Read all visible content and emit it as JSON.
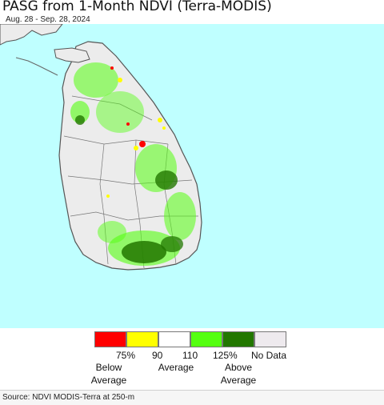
{
  "title": "PASG from 1-Month NDVI (Terra-MODIS)",
  "date_range": "Aug. 28 - Sep. 28, 2024",
  "legend": {
    "categories": [
      {
        "color": "#ff0000",
        "name": "red"
      },
      {
        "color": "#ffff00",
        "name": "yellow"
      },
      {
        "color": "#ffffff",
        "name": "white"
      },
      {
        "color": "#55ff11",
        "name": "light-green"
      },
      {
        "color": "#227700",
        "name": "dark-green"
      },
      {
        "color": "#eeeaee",
        "name": "no-data"
      }
    ],
    "ticks": [
      "75%",
      "90",
      "110",
      "125%",
      "No Data"
    ],
    "group_labels": {
      "below": [
        "Below",
        "Average"
      ],
      "average": "Average",
      "above": [
        "Above",
        "Average"
      ]
    }
  },
  "colors": {
    "ocean": "#bfffff",
    "land_no_data": "#ececec",
    "boundary": "#555555"
  },
  "source": "Source: NDVI MODIS-Terra at 250-m"
}
